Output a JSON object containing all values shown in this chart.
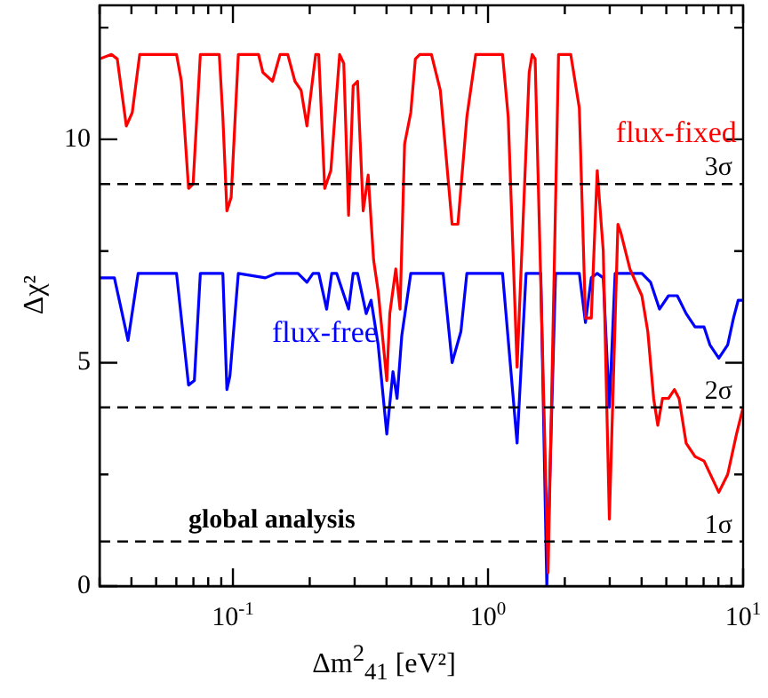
{
  "chart_data": {
    "type": "line",
    "xlabel": "Δm$^{2}$$_{41}$ [eV²]",
    "ylabel": "Δχ²",
    "log": "x",
    "grid": false,
    "legend": false,
    "marker": "none",
    "line_style": "solid",
    "xlim": [
      0.03,
      10
    ],
    "ylim": [
      0,
      13
    ],
    "xticks": [
      {
        "value": 0.03,
        "label": null
      },
      {
        "value": 0.04,
        "label": null
      },
      {
        "value": 0.05,
        "label": null
      },
      {
        "value": 0.06,
        "label": null
      },
      {
        "value": 0.07,
        "label": null
      },
      {
        "value": 0.08,
        "label": null
      },
      {
        "value": 0.09,
        "label": null
      },
      {
        "value": 0.1,
        "label": "10$^{-1}$"
      },
      {
        "value": 0.2,
        "label": null
      },
      {
        "value": 0.3,
        "label": null
      },
      {
        "value": 0.4,
        "label": null
      },
      {
        "value": 0.5,
        "label": null
      },
      {
        "value": 0.6,
        "label": null
      },
      {
        "value": 0.7,
        "label": null
      },
      {
        "value": 0.8,
        "label": null
      },
      {
        "value": 0.9,
        "label": null
      },
      {
        "value": 1,
        "label": "10$^{0}$"
      },
      {
        "value": 2,
        "label": null
      },
      {
        "value": 3,
        "label": null
      },
      {
        "value": 4,
        "label": null
      },
      {
        "value": 5,
        "label": null
      },
      {
        "value": 6,
        "label": null
      },
      {
        "value": 7,
        "label": null
      },
      {
        "value": 8,
        "label": null
      },
      {
        "value": 9,
        "label": null
      },
      {
        "value": 10,
        "label": "10$^{1}$"
      }
    ],
    "yticks": [
      0,
      {
        "value": 2.5,
        "label": null
      },
      5,
      {
        "value": 7.5,
        "label": null
      },
      10,
      {
        "value": 12.5,
        "label": null
      }
    ],
    "series": [
      {
        "name": "flux-fixed",
        "color": "#ff0000",
        "x": [
          0.03,
          0.0334,
          0.0352,
          0.0382,
          0.0403,
          0.0431,
          0.0601,
          0.0628,
          0.067,
          0.0698,
          0.0745,
          0.0884,
          0.0913,
          0.0947,
          0.0984,
          0.105,
          0.126,
          0.131,
          0.143,
          0.153,
          0.164,
          0.175,
          0.185,
          0.195,
          0.211,
          0.217,
          0.229,
          0.242,
          0.262,
          0.272,
          0.284,
          0.296,
          0.308,
          0.324,
          0.339,
          0.356,
          0.371,
          0.401,
          0.412,
          0.435,
          0.452,
          0.471,
          0.498,
          0.519,
          0.54,
          0.6,
          0.65,
          0.723,
          0.762,
          0.826,
          0.895,
          1.14,
          1.2,
          1.3,
          1.45,
          1.49,
          1.53,
          1.72,
          1.89,
          1.96,
          2.11,
          2.28,
          2.41,
          2.54,
          2.68,
          2.83,
          2.99,
          3.23,
          3.32,
          3.6,
          4.01,
          4.23,
          4.46,
          4.63,
          4.83,
          5.1,
          5.38,
          5.61,
          5.98,
          6.48,
          7.03,
          8.03,
          8.7,
          9.42,
          10
        ],
        "values": [
          11.8,
          11.9,
          11.8,
          10.3,
          10.6,
          11.9,
          11.9,
          11.3,
          8.9,
          9.0,
          11.9,
          11.9,
          10.5,
          8.4,
          8.7,
          11.9,
          11.9,
          11.5,
          11.3,
          11.9,
          11.9,
          11.3,
          11.1,
          10.3,
          11.9,
          11.9,
          8.9,
          9.3,
          11.9,
          11.7,
          8.3,
          11.2,
          11.3,
          8.4,
          9.2,
          7.3,
          6.6,
          4.6,
          6.1,
          7.1,
          6.2,
          9.9,
          10.6,
          11.8,
          11.9,
          11.9,
          11.1,
          8.1,
          8.1,
          10.5,
          11.9,
          11.9,
          10.5,
          4.9,
          11.5,
          11.9,
          11.8,
          0.3,
          11.9,
          11.9,
          11.9,
          10.7,
          6.0,
          6.0,
          9.3,
          7.5,
          1.5,
          8.1,
          7.9,
          7.1,
          6.5,
          5.7,
          4.2,
          3.6,
          4.2,
          4.2,
          4.4,
          4.2,
          3.2,
          2.9,
          2.8,
          2.1,
          2.5,
          3.4,
          4.0
        ]
      },
      {
        "name": "flux-free",
        "color": "#0000ff",
        "x": [
          0.03,
          0.0343,
          0.0388,
          0.0425,
          0.0601,
          0.067,
          0.0706,
          0.0745,
          0.0913,
          0.0947,
          0.0973,
          0.105,
          0.134,
          0.148,
          0.18,
          0.195,
          0.206,
          0.217,
          0.233,
          0.244,
          0.255,
          0.284,
          0.296,
          0.308,
          0.333,
          0.348,
          0.371,
          0.401,
          0.424,
          0.44,
          0.459,
          0.498,
          0.667,
          0.703,
          0.723,
          0.783,
          0.826,
          1.14,
          1.3,
          1.41,
          1.61,
          1.7,
          1.84,
          2.28,
          2.41,
          2.54,
          2.68,
          2.83,
          2.99,
          3.15,
          4.01,
          4.34,
          4.7,
          5.1,
          5.52,
          5.98,
          6.48,
          7.03,
          7.41,
          8.03,
          8.7,
          9.17,
          9.57,
          10
        ],
        "values": [
          6.9,
          6.9,
          5.5,
          7.0,
          7.0,
          4.5,
          4.6,
          7.0,
          7.0,
          4.4,
          4.7,
          7.0,
          6.9,
          7.0,
          7.0,
          6.8,
          7.0,
          7.0,
          6.2,
          7.0,
          7.0,
          6.2,
          7.0,
          7.0,
          6.1,
          6.4,
          5.4,
          3.4,
          4.8,
          4.2,
          5.6,
          7.0,
          7.0,
          5.7,
          5.0,
          5.7,
          7.0,
          7.0,
          3.2,
          7.0,
          7.0,
          0.0,
          7.0,
          7.0,
          5.9,
          6.9,
          7.0,
          6.9,
          4.0,
          7.0,
          7.0,
          6.8,
          6.2,
          6.5,
          6.5,
          6.1,
          5.8,
          5.8,
          5.4,
          5.1,
          5.4,
          6.0,
          6.4,
          6.4
        ]
      }
    ],
    "ref_lines": [
      {
        "axis": "y",
        "value": 9,
        "label": "3σ",
        "color": "#000000",
        "line_style": "dashed"
      },
      {
        "axis": "y",
        "value": 4,
        "label": "2σ",
        "color": "#000000",
        "line_style": "dashed"
      },
      {
        "axis": "y",
        "value": 1,
        "label": "1σ",
        "color": "#000000",
        "line_style": "dashed"
      }
    ],
    "annotations": [
      "global analysis"
    ]
  }
}
